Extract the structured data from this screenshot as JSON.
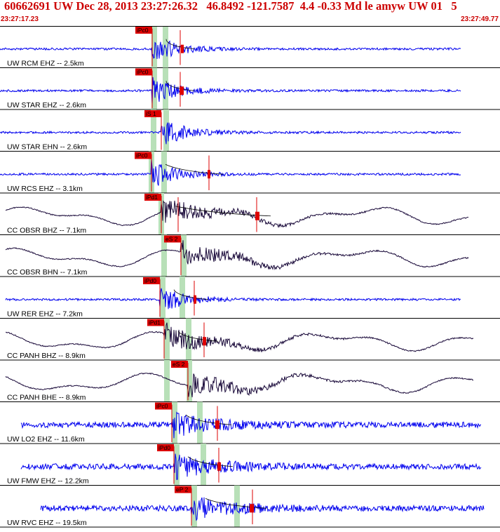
{
  "header": {
    "title": "60662691 UW Dec 28, 2013 23:27:26.32   46.8492 -121.7587  4.4 -0.33 Md le amyw UW 01   5",
    "start_time": "23:27:17.23",
    "end_time": "23:27:49.77"
  },
  "colors": {
    "header_text": "#cc0000",
    "trace_blue": "#0000ee",
    "trace_dark": "#1a0a3a",
    "pick_marker": "#dd0000",
    "window_band": "#b8e0b8",
    "divider": "#000000"
  },
  "chart_data": {
    "type": "seismogram",
    "time_range": [
      "23:27:17.23",
      "23:27:49.77"
    ],
    "grid": false,
    "traces": [
      {
        "label": "UW RCM EHZ -- 2.5km",
        "pick": "iPc0",
        "color": "blue",
        "style": "hf"
      },
      {
        "label": "UW STAR EHZ -- 2.6km",
        "pick": "iPc0",
        "color": "blue",
        "style": "hf"
      },
      {
        "label": "UW STAR EHN -- 2.6km",
        "pick": "iS 1",
        "color": "blue",
        "style": "hf"
      },
      {
        "label": "UW RCS EHZ -- 3.1km",
        "pick": "iPc0",
        "color": "blue",
        "style": "hf"
      },
      {
        "label": "CC OBSR BHZ -- 7.1km",
        "pick": "iPd1",
        "color": "dark",
        "style": "lf"
      },
      {
        "label": "CC OBSR BHN -- 7.1km",
        "pick": "eS 2",
        "color": "dark",
        "style": "lf"
      },
      {
        "label": "UW RER EHZ -- 7.2km",
        "pick": "iPd0",
        "color": "blue",
        "style": "hf"
      },
      {
        "label": "CC PANH BHZ -- 8.9km",
        "pick": "iPd1",
        "color": "dark",
        "style": "lf"
      },
      {
        "label": "CC PANH BHE -- 8.9km",
        "pick": "eS 2",
        "color": "dark",
        "style": "lf"
      },
      {
        "label": "UW LO2 EHZ -- 11.6km",
        "pick": "iPc0",
        "color": "blue",
        "style": "noisy"
      },
      {
        "label": "UW FMW EHZ -- 12.2km",
        "pick": "iPd0",
        "color": "blue",
        "style": "noisy"
      },
      {
        "label": "UW RVC EHZ -- 19.5km",
        "pick": "eP 2",
        "color": "blue",
        "style": "noisy"
      }
    ]
  }
}
